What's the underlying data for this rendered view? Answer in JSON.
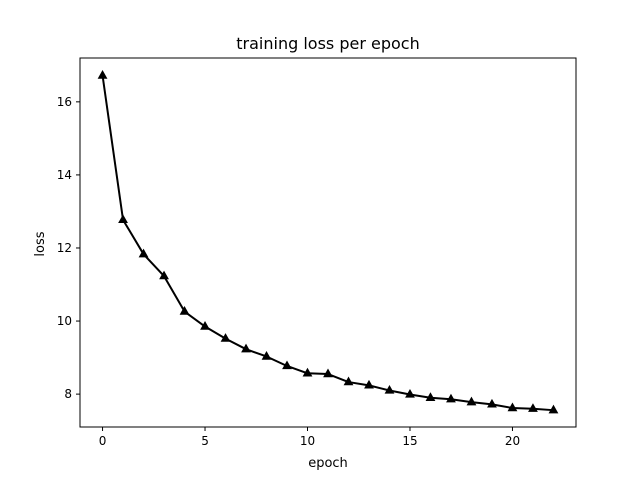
{
  "chart_data": {
    "type": "line",
    "title": "training loss per epoch",
    "xlabel": "epoch",
    "ylabel": "loss",
    "xlim": [
      -1.1,
      23.1
    ],
    "ylim": [
      7.1,
      17.2
    ],
    "xticks": [
      0,
      5,
      10,
      15,
      20
    ],
    "yticks": [
      8,
      10,
      12,
      14,
      16
    ],
    "grid": false,
    "legend": "none",
    "marker": "triangle-up",
    "series": [
      {
        "color": "#000000",
        "x": [
          0,
          1,
          2,
          3,
          4,
          5,
          6,
          7,
          8,
          9,
          10,
          11,
          12,
          13,
          14,
          15,
          16,
          17,
          18,
          19,
          20,
          21,
          22
        ],
        "y": [
          16.72,
          12.77,
          11.83,
          11.23,
          10.26,
          9.85,
          9.52,
          9.23,
          9.03,
          8.77,
          8.57,
          8.55,
          8.33,
          8.24,
          8.1,
          7.99,
          7.9,
          7.86,
          7.78,
          7.72,
          7.62,
          7.6,
          7.56
        ]
      }
    ]
  }
}
